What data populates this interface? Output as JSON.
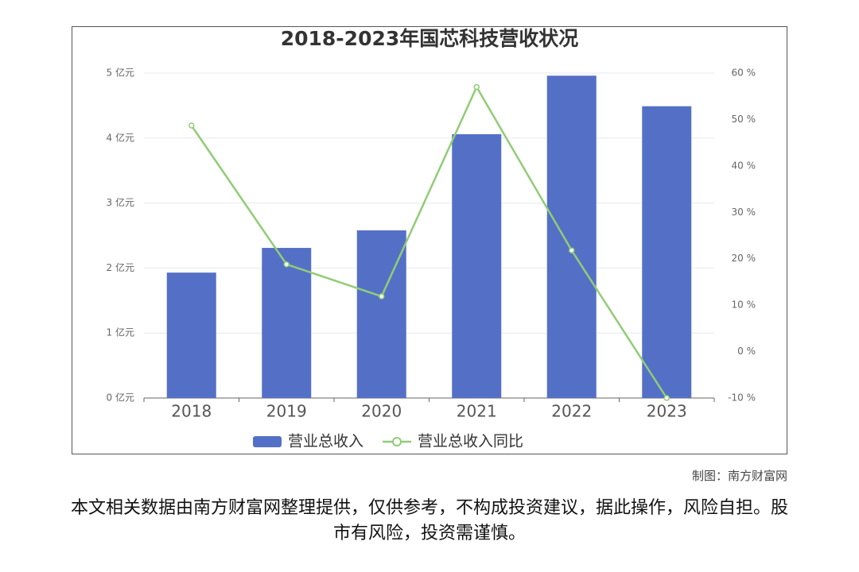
{
  "chart_data": {
    "type": "bar",
    "title": "2018-2023年国芯科技营收状况",
    "categories": [
      "2018",
      "2019",
      "2020",
      "2021",
      "2022",
      "2023"
    ],
    "series": [
      {
        "name": "营业总收入",
        "type": "bar",
        "color": "#5470c6",
        "values": [
          1.93,
          2.31,
          2.58,
          4.06,
          4.96,
          4.49
        ]
      },
      {
        "name": "营业总收入同比",
        "type": "line",
        "axis": "y2",
        "color": "#91cc75",
        "values": [
          48.7,
          18.8,
          11.9,
          57,
          21.8,
          -10
        ]
      }
    ],
    "ylim": [
      0,
      5
    ],
    "yticks": [
      {
        "value": 0,
        "label": "0 亿元"
      },
      {
        "value": 1,
        "label": "1 亿元"
      },
      {
        "value": 2,
        "label": "2 亿元"
      },
      {
        "value": 3,
        "label": "3 亿元"
      },
      {
        "value": 4,
        "label": "4 亿元"
      },
      {
        "value": 5,
        "label": "5 亿元"
      }
    ],
    "y2lim": [
      -10,
      60
    ],
    "y2ticks": [
      {
        "value": -10,
        "label": "-10 %"
      },
      {
        "value": 0,
        "label": "0 %"
      },
      {
        "value": 10,
        "label": "10 %"
      },
      {
        "value": 20,
        "label": "20 %"
      },
      {
        "value": 30,
        "label": "30 %"
      },
      {
        "value": 40,
        "label": "40 %"
      },
      {
        "value": 50,
        "label": "50 %"
      },
      {
        "value": 60,
        "label": "60 %"
      }
    ],
    "grid": true
  },
  "source": "制图：南方财富网",
  "disclaimer": "本文相关数据由南方财富网整理提供，仅供参考，不构成投资建议，据此操作，风险自担。股市有风险，投资需谨慎。"
}
